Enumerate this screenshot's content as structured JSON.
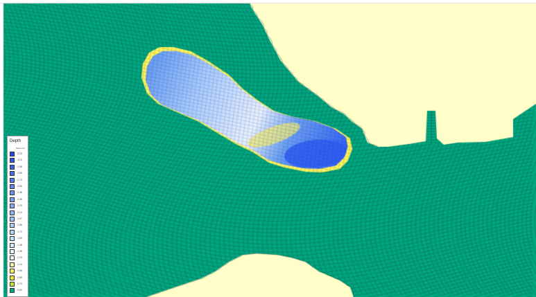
{
  "map": {
    "colors": {
      "mesh_water": "#00a680",
      "mesh_line": "#10423a",
      "land": "#fffec8",
      "plume_yellow": "#fff55a",
      "plume_lightest": "#e8f0ff",
      "plume_light_blue": "#a8cbff",
      "plume_mid_blue": "#6a9ff5",
      "plume_deep_blue": "#2d5df5"
    }
  },
  "legend": {
    "title": "Depth",
    "subtitle": "Maximum",
    "colors": [
      "#2846e8",
      "#3554ea",
      "#4060ec",
      "#4c6cee",
      "#5878f0",
      "#6484f2",
      "#7090f4",
      "#7c9cf6",
      "#88a8f8",
      "#94b4fa",
      "#a0c0fb",
      "#acccfc",
      "#b8d6fd",
      "#c6e0fe",
      "#d6eafe",
      "#e8f4ff",
      "#f4f4e8",
      "#f6f0a0",
      "#f8ec60",
      "#e8e830",
      "#c8e030",
      "#00a680"
    ],
    "values": [
      "3.23",
      "3.10",
      "2.98",
      "2.85",
      "2.73",
      "2.60",
      "2.48",
      "2.35",
      "2.23",
      "2.10",
      "1.97",
      "1.85",
      "1.72",
      "1.60",
      "1.48",
      "1.35",
      "1.23",
      "1.10",
      "0.98",
      "0.85",
      "0.73",
      "0.60"
    ]
  }
}
